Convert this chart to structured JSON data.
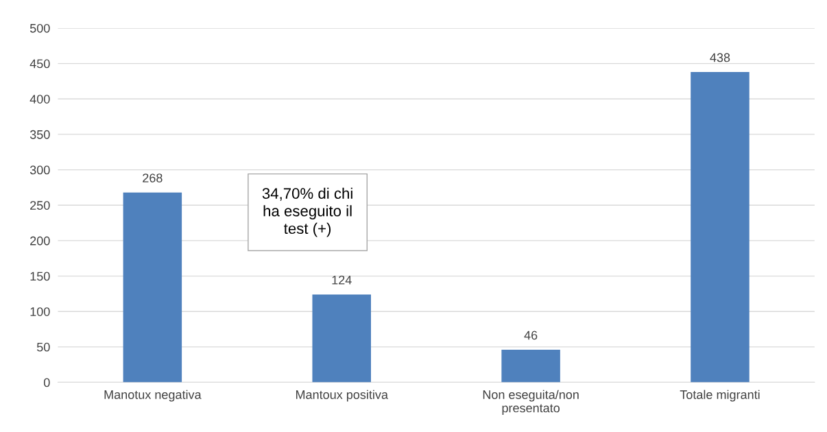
{
  "chart_data": {
    "type": "bar",
    "categories": [
      "Manotux negativa",
      "Mantoux positiva",
      "Non eseguita/non\npresentato",
      "Totale migranti"
    ],
    "values": [
      268,
      124,
      46,
      438
    ],
    "color": "#4f81bd",
    "ylim": [
      0,
      500
    ],
    "yticks": [
      0,
      50,
      100,
      150,
      200,
      250,
      300,
      350,
      400,
      450,
      500
    ],
    "grid": "y",
    "data_labels": true,
    "annotations": [
      "34,70% di chi\nha eseguito il\ntest (+)"
    ]
  }
}
